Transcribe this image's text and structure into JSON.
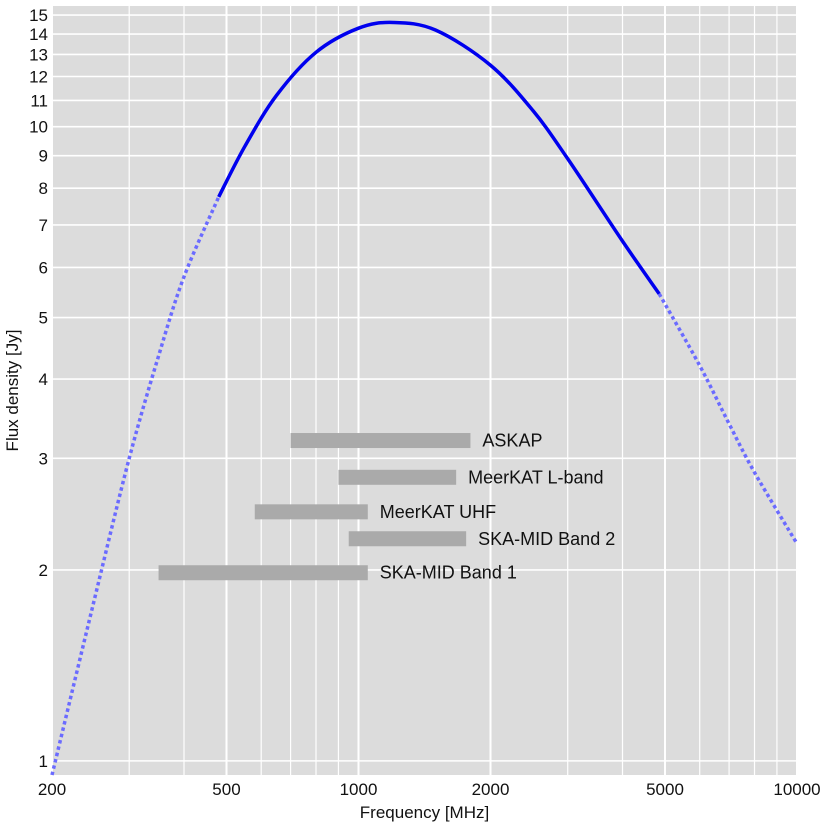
{
  "chart_data": {
    "type": "line",
    "xlabel": "Frequency [MHz]",
    "ylabel": "Flux density [Jy]",
    "xscale": "log",
    "yscale": "log",
    "xlim": [
      200,
      10000
    ],
    "ylim": [
      0.95,
      15.5
    ],
    "grid": true,
    "x_tick_labels": [
      "200",
      "500",
      "1000",
      "2000",
      "5000",
      "10000"
    ],
    "x_ticks": [
      200,
      500,
      1000,
      2000,
      5000,
      10000
    ],
    "x_minor_ticks": [
      300,
      400,
      600,
      700,
      800,
      900,
      3000,
      4000,
      6000,
      7000,
      8000,
      9000
    ],
    "y_tick_labels": [
      "1",
      "2",
      "3",
      "4",
      "5",
      "6",
      "7",
      "8",
      "9",
      "10",
      "11",
      "12",
      "13",
      "14",
      "15"
    ],
    "y_ticks": [
      1,
      2,
      3,
      4,
      5,
      6,
      7,
      8,
      9,
      10,
      11,
      12,
      13,
      14,
      15
    ],
    "series": [
      {
        "style": "solid",
        "color": "#0000ee",
        "x": [
          480,
          550,
          650,
          800,
          1000,
          1200,
          1500,
          2000,
          2500,
          3000,
          4000,
          4850
        ],
        "y": [
          7.75,
          9.3,
          11.2,
          13.1,
          14.3,
          14.6,
          14.2,
          12.5,
          10.6,
          8.9,
          6.6,
          5.45
        ]
      },
      {
        "style": "dotted",
        "color": "#6b6bff",
        "x": [
          200,
          250,
          300,
          350,
          400,
          480
        ],
        "y": [
          0.95,
          1.8,
          3.0,
          4.35,
          5.8,
          7.75
        ]
      },
      {
        "style": "dotted",
        "color": "#6b6bff",
        "x": [
          4850,
          6000,
          7000,
          8000,
          10000
        ],
        "y": [
          5.45,
          4.2,
          3.4,
          2.85,
          2.2
        ]
      }
    ],
    "bands": [
      {
        "label": "ASKAP",
        "x_start": 700,
        "x_end": 1800,
        "y": 3.2
      },
      {
        "label": "MeerKAT L-band",
        "x_start": 900,
        "x_end": 1670,
        "y": 2.8
      },
      {
        "label": "MeerKAT UHF",
        "x_start": 580,
        "x_end": 1050,
        "y": 2.47
      },
      {
        "label": "SKA-MID Band 2",
        "x_start": 950,
        "x_end": 1760,
        "y": 2.24
      },
      {
        "label": "SKA-MID Band 1",
        "x_start": 350,
        "x_end": 1050,
        "y": 1.98
      }
    ],
    "colors": {
      "plot_background": "#dcdcdc",
      "grid": "#ffffff",
      "band": "#aaaaaa"
    }
  }
}
